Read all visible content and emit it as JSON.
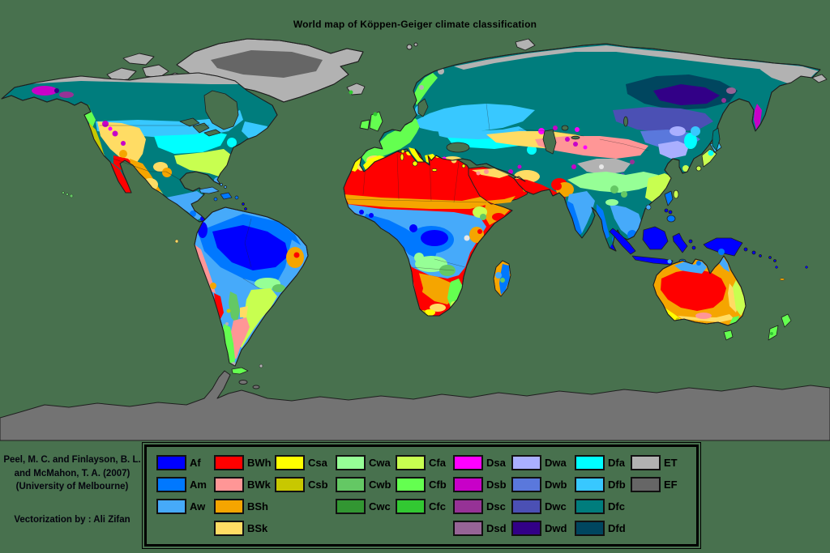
{
  "title": "World map of Köppen-Geiger climate classification",
  "attribution": {
    "line1": "Peel, M. C. and Finlayson, B. L.",
    "line2": "and McMahon, T. A. (2007)",
    "line3": "(University of Melbourne)",
    "vectorization": "Vectorization by : Ali Zifan"
  },
  "map_colors": {
    "ocean": "#48714E",
    "antarctica": "#737373",
    "lake": "#E8E8E8",
    "outline": "#1F1F1F"
  },
  "climate_colors": {
    "Af": "#0000FF",
    "Am": "#0078FF",
    "Aw": "#46AAFA",
    "BWh": "#FF0000",
    "BWk": "#FF9696",
    "BSh": "#F5A500",
    "BSk": "#FFDC64",
    "Csa": "#FFFF00",
    "Csb": "#C8C800",
    "Cwa": "#96FF96",
    "Cwb": "#64C864",
    "Cwc": "#329632",
    "Cfa": "#C8FF50",
    "Cfb": "#64FF50",
    "Cfc": "#32C832",
    "Dsa": "#FF00FF",
    "Dsb": "#C800C8",
    "Dsc": "#963296",
    "Dsd": "#966496",
    "Dwa": "#AAAFFF",
    "Dwb": "#5A78DC",
    "Dwc": "#4B50B4",
    "Dwd": "#320087",
    "Dfa": "#00FFFF",
    "Dfb": "#38C8FF",
    "Dfc": "#007D7D",
    "Dfd": "#00465F",
    "ET": "#B2B2B2",
    "EF": "#666666"
  },
  "legend": {
    "columns": [
      {
        "items": [
          "Af",
          "Am",
          "Aw"
        ]
      },
      {
        "items": [
          "BWh",
          "BWk",
          "BSh",
          "BSk"
        ]
      },
      {
        "items": [
          "Csa",
          "Csb"
        ]
      },
      {
        "items": [
          "Cwa",
          "Cwb",
          "Cwc"
        ]
      },
      {
        "items": [
          "Cfa",
          "Cfb",
          "Cfc"
        ]
      },
      {
        "items": [
          "Dsa",
          "Dsb",
          "Dsc",
          "Dsd"
        ]
      },
      {
        "items": [
          "Dwa",
          "Dwb",
          "Dwc",
          "Dwd"
        ]
      },
      {
        "items": [
          "Dfa",
          "Dfb",
          "Dfc",
          "Dfd"
        ]
      },
      {
        "items": [
          "ET",
          "EF"
        ]
      }
    ]
  }
}
